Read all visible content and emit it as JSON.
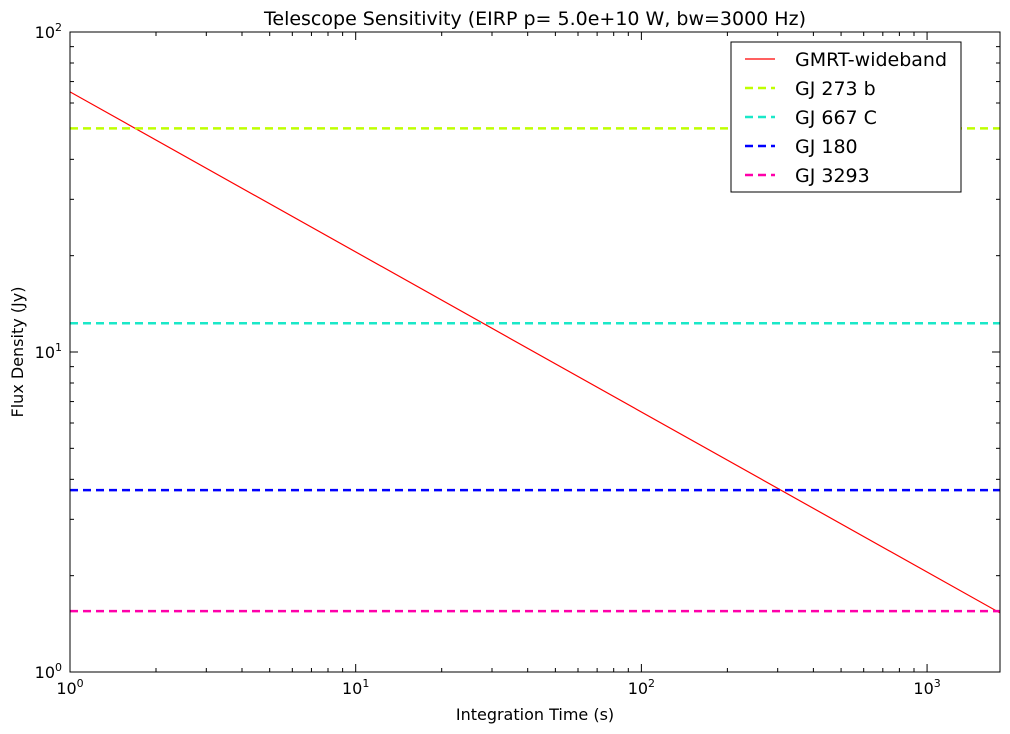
{
  "chart_data": {
    "type": "line",
    "title": "Telescope Sensitivity (EIRP p= 5.0e+10 W, bw=3000 Hz)",
    "xlabel": "Integration Time (s)",
    "ylabel": "Flux Density (Jy)",
    "xscale": "log",
    "yscale": "log",
    "xlim": [
      1,
      1800
    ],
    "ylim": [
      1,
      100
    ],
    "xticks": [
      1,
      10,
      100,
      1000
    ],
    "yticks": [
      1,
      10,
      100
    ],
    "xtick_labels": [
      {
        "base": "10",
        "exp": "0"
      },
      {
        "base": "10",
        "exp": "1"
      },
      {
        "base": "10",
        "exp": "2"
      },
      {
        "base": "10",
        "exp": "3"
      }
    ],
    "ytick_labels": [
      {
        "base": "10",
        "exp": "0"
      },
      {
        "base": "10",
        "exp": "1"
      },
      {
        "base": "10",
        "exp": "2"
      }
    ],
    "grid": false,
    "legend_position": "top-right",
    "series": [
      {
        "name": "GMRT-wideband",
        "style": "solid",
        "color": "#ff0000",
        "x": [
          1,
          1800
        ],
        "y": [
          65,
          1.53
        ]
      },
      {
        "name": "GJ 273 b",
        "style": "dashed",
        "color": "#bfff00",
        "x": [
          1,
          1800
        ],
        "y": [
          50,
          50
        ]
      },
      {
        "name": "GJ 667 C",
        "style": "dashed",
        "color": "#1ae8c8",
        "x": [
          1,
          1800
        ],
        "y": [
          12.3,
          12.3
        ]
      },
      {
        "name": "GJ 180",
        "style": "dashed",
        "color": "#0000ff",
        "x": [
          1,
          1800
        ],
        "y": [
          3.7,
          3.7
        ]
      },
      {
        "name": "GJ 3293",
        "style": "dashed",
        "color": "#ff00aa",
        "x": [
          1,
          1800
        ],
        "y": [
          1.55,
          1.55
        ]
      }
    ]
  }
}
